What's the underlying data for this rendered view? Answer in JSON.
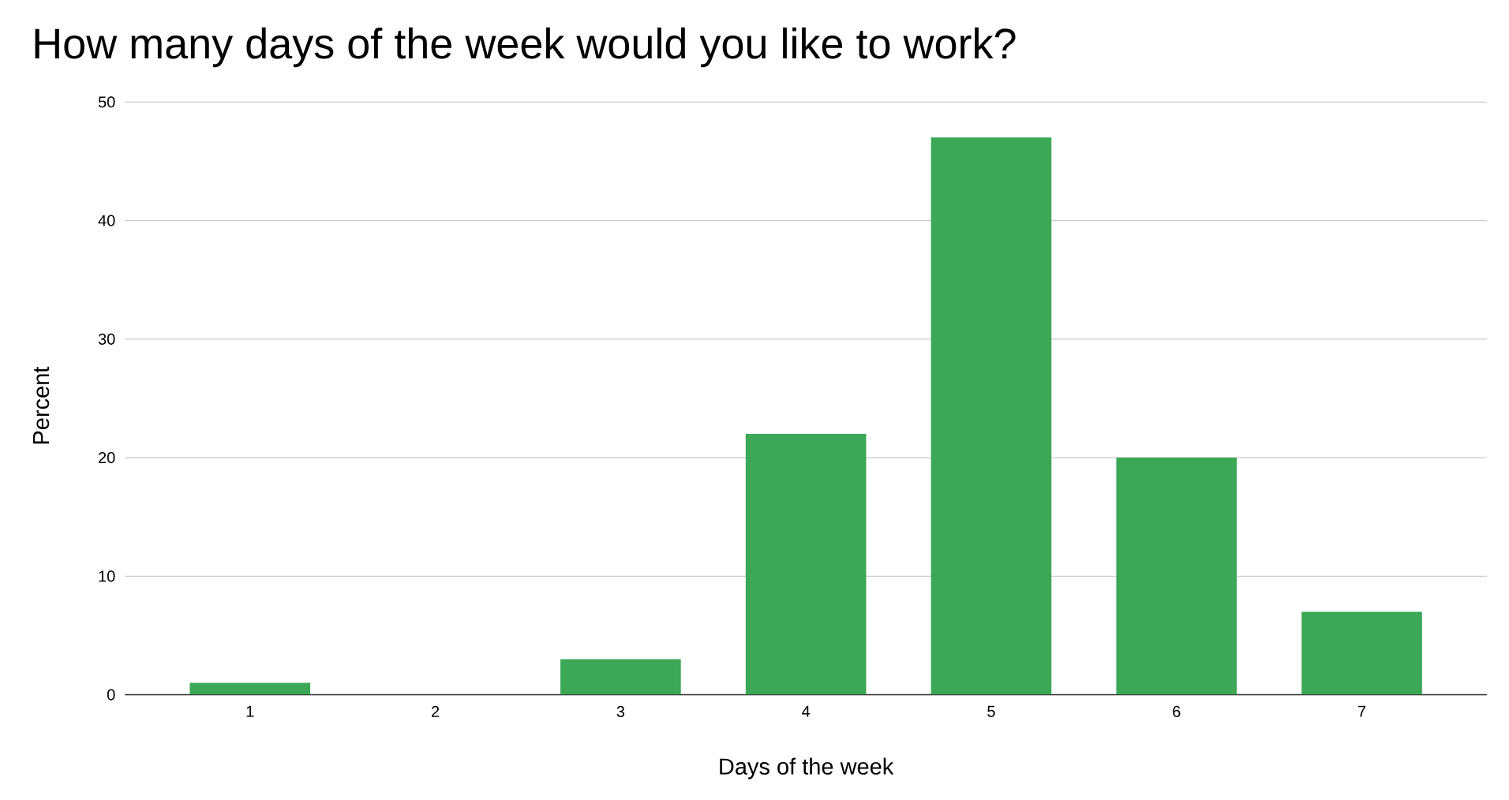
{
  "chart_data": {
    "type": "bar",
    "title": "How many days of the week would you like to work?",
    "xlabel": "Days of the week",
    "ylabel": "Percent",
    "categories": [
      "1",
      "2",
      "3",
      "4",
      "5",
      "6",
      "7"
    ],
    "values": [
      1,
      0,
      3,
      22,
      47,
      20,
      7
    ],
    "color": "#3ba757",
    "ylim": [
      0,
      50
    ],
    "yticks": [
      0,
      10,
      20,
      30,
      40,
      50
    ],
    "grid": "y"
  }
}
